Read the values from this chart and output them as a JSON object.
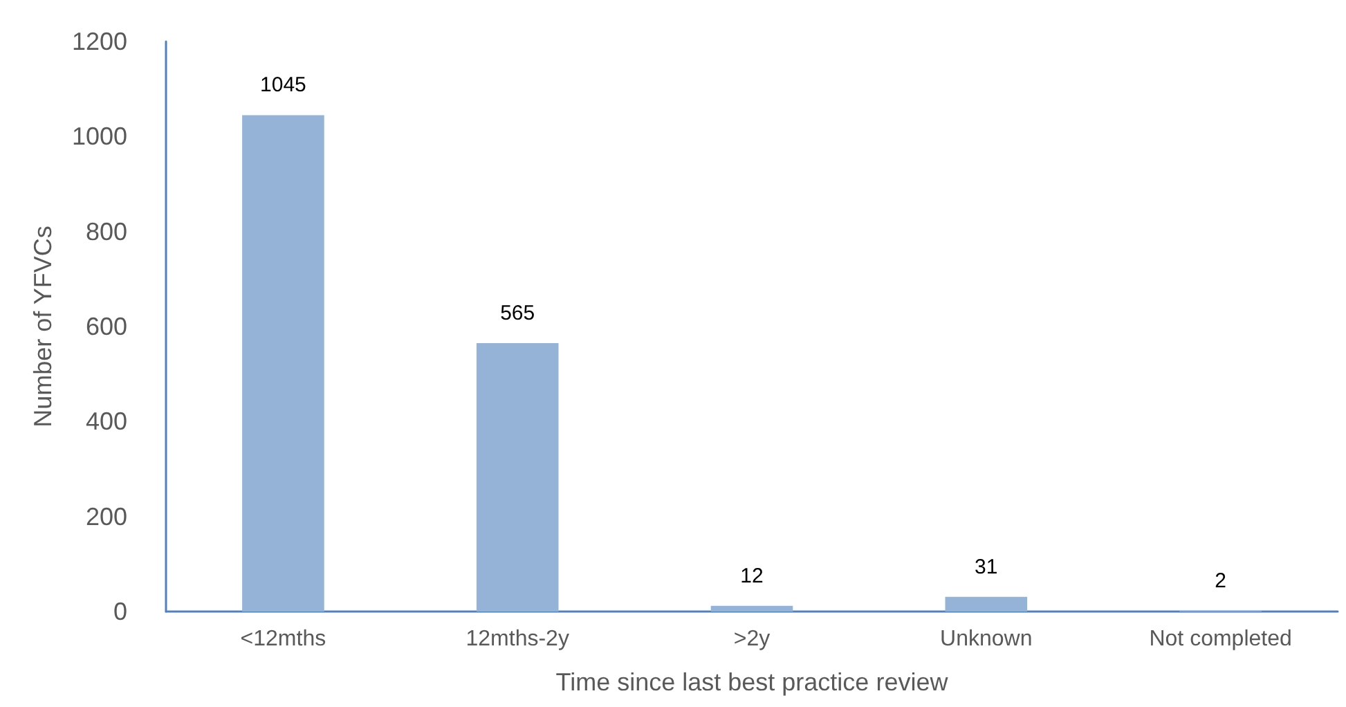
{
  "chart_data": {
    "type": "bar",
    "xlabel": "Time since last best practice review",
    "ylabel": "Number of YFVCs",
    "categories": [
      "<12mths",
      "12mths-2y",
      ">2y",
      "Unknown",
      "Not completed"
    ],
    "values": [
      1045,
      565,
      12,
      31,
      2
    ],
    "color": "#95b3d7",
    "ylim": [
      0,
      1200
    ],
    "yticks": [
      0,
      200,
      400,
      600,
      800,
      1000,
      1200
    ],
    "grid": false,
    "data_labels": true
  }
}
